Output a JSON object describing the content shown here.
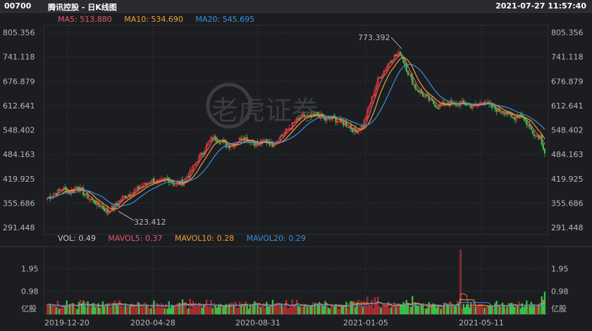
{
  "header": {
    "code": "00700",
    "name": "腾讯控股 - 日K线图",
    "timestamp": "2021-07-27 11:57:40"
  },
  "price_legend": {
    "ma5": "MA5: 513.880",
    "ma10": "MA10: 534.690",
    "ma20": "MA20: 545.695"
  },
  "volume_legend": {
    "vol": "VOL: 0.49",
    "mavol5": "MAVOL5: 0.37",
    "mavol10": "MAVOL10: 0.28",
    "mavol20": "MAVOL20: 0.29"
  },
  "colors": {
    "up": "#e0363d",
    "down": "#35c24b",
    "ma5": "#e05a6a",
    "ma10": "#f0a030",
    "ma20": "#3a8fd8",
    "grid": "#2e3036"
  },
  "watermark": "老虎证券",
  "chart_data": {
    "type": "candlestick",
    "price_axis": {
      "ticks": [
        "805.356",
        "741.118",
        "676.879",
        "612.641",
        "548.402",
        "484.163",
        "419.925",
        "355.686",
        "291.448"
      ],
      "range": [
        291.448,
        805.356
      ]
    },
    "volume_axis": {
      "ticks": [
        "1.95",
        "0.98"
      ],
      "unit": "亿股",
      "range": [
        0,
        2.9
      ]
    },
    "x_ticks": [
      "2019-12-20",
      "2020-04-28",
      "2020-08-31",
      "2021-01-05",
      "2021-05-11"
    ],
    "annotations": {
      "high": "773.392",
      "low": "323.412"
    },
    "anchor_points": [
      [
        0,
        368
      ],
      [
        5,
        380
      ],
      [
        10,
        395
      ],
      [
        15,
        385
      ],
      [
        20,
        400
      ],
      [
        25,
        378
      ],
      [
        30,
        362
      ],
      [
        35,
        350
      ],
      [
        40,
        332
      ],
      [
        45,
        348
      ],
      [
        50,
        370
      ],
      [
        55,
        380
      ],
      [
        60,
        392
      ],
      [
        65,
        405
      ],
      [
        70,
        415
      ],
      [
        75,
        410
      ],
      [
        80,
        420
      ],
      [
        85,
        405
      ],
      [
        90,
        410
      ],
      [
        95,
        435
      ],
      [
        100,
        470
      ],
      [
        105,
        500
      ],
      [
        110,
        530
      ],
      [
        115,
        520
      ],
      [
        120,
        505
      ],
      [
        125,
        515
      ],
      [
        130,
        530
      ],
      [
        135,
        520
      ],
      [
        140,
        510
      ],
      [
        145,
        520
      ],
      [
        150,
        510
      ],
      [
        155,
        530
      ],
      [
        160,
        550
      ],
      [
        165,
        570
      ],
      [
        170,
        585
      ],
      [
        175,
        580
      ],
      [
        180,
        590
      ],
      [
        185,
        575
      ],
      [
        190,
        580
      ],
      [
        195,
        570
      ],
      [
        200,
        560
      ],
      [
        205,
        545
      ],
      [
        210,
        560
      ],
      [
        215,
        620
      ],
      [
        220,
        680
      ],
      [
        225,
        710
      ],
      [
        230,
        740
      ],
      [
        235,
        750
      ],
      [
        240,
        700
      ],
      [
        245,
        660
      ],
      [
        250,
        640
      ],
      [
        255,
        625
      ],
      [
        260,
        610
      ],
      [
        265,
        620
      ],
      [
        270,
        615
      ],
      [
        275,
        620
      ],
      [
        280,
        615
      ],
      [
        285,
        610
      ],
      [
        290,
        625
      ],
      [
        295,
        610
      ],
      [
        300,
        600
      ],
      [
        305,
        595
      ],
      [
        310,
        580
      ],
      [
        315,
        590
      ],
      [
        320,
        560
      ],
      [
        325,
        535
      ],
      [
        328,
        530
      ],
      [
        331,
        490
      ]
    ],
    "volume_spike_index": 275
  }
}
